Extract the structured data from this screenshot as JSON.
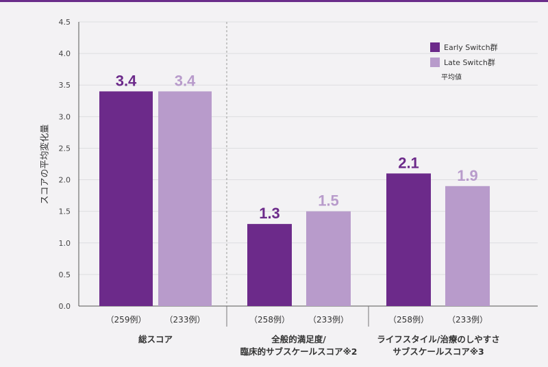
{
  "chart_data": {
    "type": "bar",
    "ylabel": "スコアの平均変化量",
    "ylim": [
      0,
      4.5
    ],
    "yticks": [
      "0.0",
      "0.5",
      "1.0",
      "1.5",
      "2.0",
      "2.5",
      "3.0",
      "3.5",
      "4.0",
      "4.5"
    ],
    "groups": [
      {
        "label_lines": [
          "総スコア"
        ],
        "counts": [
          "（259例）",
          "（233例）"
        ],
        "values": [
          3.4,
          3.4
        ],
        "value_labels": [
          "3.4",
          "3.4"
        ]
      },
      {
        "label_lines": [
          "全般的満足度/",
          "臨床的サブスケールスコア※2"
        ],
        "counts": [
          "（258例）",
          "（233例）"
        ],
        "values": [
          1.3,
          1.5
        ],
        "value_labels": [
          "1.3",
          "1.5"
        ]
      },
      {
        "label_lines": [
          "ライフスタイル/治療のしやすさ",
          "サブスケールスコア※3"
        ],
        "counts": [
          "（258例）",
          "（233例）"
        ],
        "values": [
          2.1,
          1.9
        ],
        "value_labels": [
          "2.1",
          "1.9"
        ]
      }
    ],
    "series": [
      {
        "name": "Early Switch群",
        "color": "#6c2a8a"
      },
      {
        "name": "Late Switch群",
        "color": "#b89bcb"
      }
    ],
    "legend_note": "平均値",
    "legend_position": "top-right",
    "grid": true
  }
}
